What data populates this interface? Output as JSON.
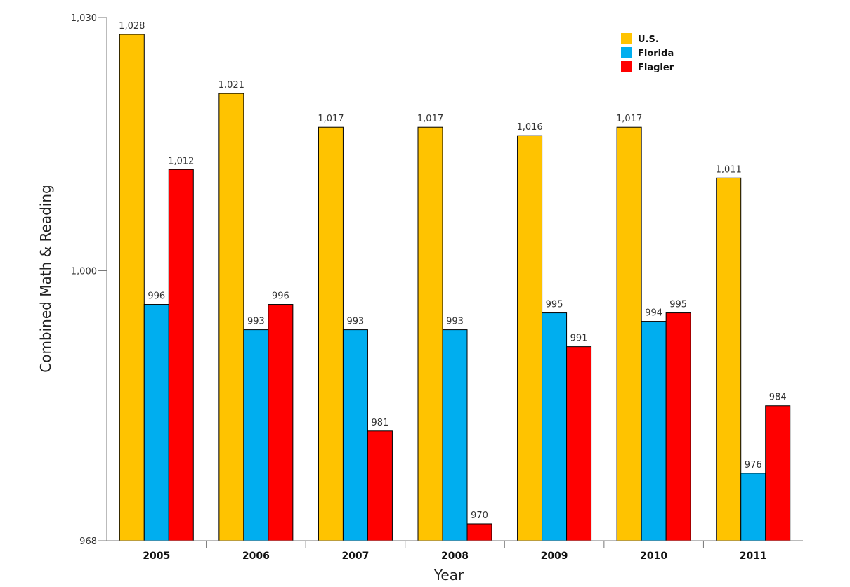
{
  "chart_data": {
    "type": "bar",
    "xlabel": "Year",
    "ylabel": "Combined Math & Reading",
    "categories": [
      "2005",
      "2006",
      "2007",
      "2008",
      "2009",
      "2010",
      "2011"
    ],
    "series": [
      {
        "name": "U.S.",
        "color": "#FFC300",
        "values": [
          1028,
          1021,
          1017,
          1017,
          1016,
          1017,
          1011
        ],
        "labels": [
          "1,028",
          "1,021",
          "1,017",
          "1,017",
          "1,016",
          "1,017",
          "1,011"
        ]
      },
      {
        "name": "Florida",
        "color": "#00AEEF",
        "values": [
          996,
          993,
          993,
          993,
          995,
          994,
          976
        ],
        "labels": [
          "996",
          "993",
          "993",
          "993",
          "995",
          "994",
          "976"
        ]
      },
      {
        "name": "Flagler",
        "color": "#FF0000",
        "values": [
          1012,
          996,
          981,
          970,
          991,
          995,
          984
        ],
        "labels": [
          "1,012",
          "996",
          "981",
          "970",
          "991",
          "995",
          "984"
        ]
      }
    ],
    "ylim": [
      968,
      1030
    ],
    "yticks": [
      968,
      1000,
      1030
    ],
    "ytick_labels": [
      "968",
      "1,000",
      "1,030"
    ],
    "grid": false,
    "legend_position": "top-right"
  }
}
